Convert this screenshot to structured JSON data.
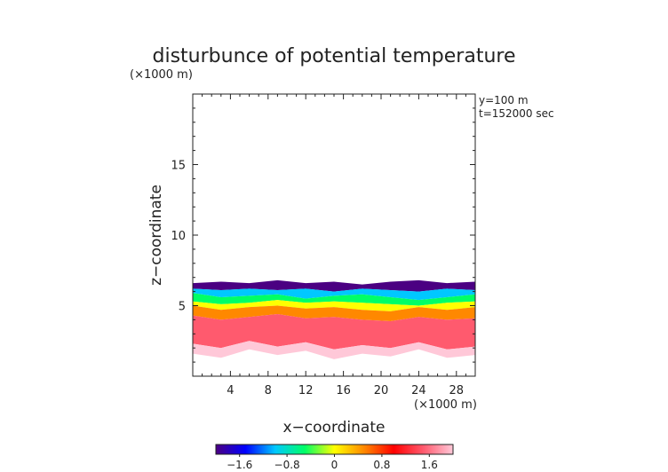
{
  "chart_data": {
    "type": "heatmap",
    "title": "disturbunce of potential temperature",
    "z_unit": "(×1000 m)",
    "x_unit": "(×1000 m)",
    "xlabel": "x−coordinate",
    "ylabel": "z−coordinate",
    "annotations": [
      "y=100  m",
      "t=152000 sec"
    ],
    "xlim": [
      0,
      30
    ],
    "ylim": [
      0,
      20
    ],
    "x_ticks": [
      4,
      8,
      12,
      16,
      20,
      24,
      28
    ],
    "x_tick_labels": [
      "4",
      "8",
      "12",
      "16",
      "20",
      "24",
      "28"
    ],
    "y_ticks": [
      5,
      10,
      15
    ],
    "y_tick_labels": [
      "5",
      "10",
      "15"
    ],
    "colorbar": {
      "range": [
        -2.0,
        2.0
      ],
      "ticks": [
        -1.6,
        -0.8,
        0,
        0.8,
        1.6
      ],
      "tick_labels": [
        "−1.6",
        "−0.8",
        "0",
        "0.8",
        "1.6"
      ],
      "colors": [
        "#4b0082",
        "#0000ff",
        "#00c8ff",
        "#00ff66",
        "#ffff00",
        "#ff8800",
        "#ff0000",
        "#ff5a6e",
        "#ffc8d8"
      ]
    },
    "field_layers": [
      {
        "name": "top edge",
        "value": -1.8,
        "z_profile": [
          [
            0,
            6.6
          ],
          [
            3,
            6.7
          ],
          [
            6,
            6.6
          ],
          [
            9,
            6.8
          ],
          [
            12,
            6.6
          ],
          [
            15,
            6.7
          ],
          [
            18,
            6.5
          ],
          [
            21,
            6.7
          ],
          [
            24,
            6.8
          ],
          [
            27,
            6.6
          ],
          [
            30,
            6.7
          ]
        ]
      },
      {
        "name": "blue band",
        "value": -1.2,
        "z_profile": [
          [
            0,
            6.2
          ],
          [
            3,
            6.1
          ],
          [
            6,
            6.2
          ],
          [
            9,
            6.1
          ],
          [
            12,
            6.2
          ],
          [
            15,
            6.0
          ],
          [
            18,
            6.2
          ],
          [
            21,
            6.1
          ],
          [
            24,
            6.0
          ],
          [
            27,
            6.2
          ],
          [
            30,
            6.1
          ]
        ]
      },
      {
        "name": "cyan band",
        "value": -0.6,
        "z_profile": [
          [
            0,
            5.9
          ],
          [
            3,
            5.6
          ],
          [
            6,
            5.7
          ],
          [
            9,
            5.8
          ],
          [
            12,
            5.5
          ],
          [
            15,
            5.7
          ],
          [
            18,
            5.8
          ],
          [
            21,
            5.6
          ],
          [
            24,
            5.4
          ],
          [
            27,
            5.6
          ],
          [
            30,
            5.8
          ]
        ]
      },
      {
        "name": "green band",
        "value": 0.0,
        "z_profile": [
          [
            0,
            5.3
          ],
          [
            3,
            5.1
          ],
          [
            6,
            5.2
          ],
          [
            9,
            5.4
          ],
          [
            12,
            5.2
          ],
          [
            15,
            5.3
          ],
          [
            18,
            5.2
          ],
          [
            21,
            5.1
          ],
          [
            24,
            5.0
          ],
          [
            27,
            5.2
          ],
          [
            30,
            5.3
          ]
        ]
      },
      {
        "name": "yellow-orange band",
        "value": 0.7,
        "z_profile": [
          [
            0,
            5.0
          ],
          [
            3,
            4.7
          ],
          [
            6,
            4.9
          ],
          [
            9,
            5.0
          ],
          [
            12,
            4.8
          ],
          [
            15,
            4.9
          ],
          [
            18,
            4.7
          ],
          [
            21,
            4.6
          ],
          [
            24,
            4.9
          ],
          [
            27,
            4.7
          ],
          [
            30,
            4.9
          ]
        ]
      },
      {
        "name": "red band",
        "value": 1.5,
        "z_profile": [
          [
            0,
            4.3
          ],
          [
            3,
            4.0
          ],
          [
            6,
            4.2
          ],
          [
            9,
            4.4
          ],
          [
            12,
            4.1
          ],
          [
            15,
            4.2
          ],
          [
            18,
            4.0
          ],
          [
            21,
            3.9
          ],
          [
            24,
            4.2
          ],
          [
            27,
            4.0
          ],
          [
            30,
            4.1
          ]
        ]
      },
      {
        "name": "pink base",
        "value": 2.0,
        "z_profile": [
          [
            0,
            2.3
          ],
          [
            3,
            2.0
          ],
          [
            6,
            2.5
          ],
          [
            9,
            2.1
          ],
          [
            12,
            2.4
          ],
          [
            15,
            1.9
          ],
          [
            18,
            2.2
          ],
          [
            21,
            2.0
          ],
          [
            24,
            2.4
          ],
          [
            27,
            1.9
          ],
          [
            30,
            2.1
          ]
        ]
      },
      {
        "name": "lower edge",
        "value": 2.0,
        "z_profile": [
          [
            0,
            1.6
          ],
          [
            3,
            1.3
          ],
          [
            6,
            1.9
          ],
          [
            9,
            1.5
          ],
          [
            12,
            1.8
          ],
          [
            15,
            1.2
          ],
          [
            18,
            1.6
          ],
          [
            21,
            1.4
          ],
          [
            24,
            1.9
          ],
          [
            27,
            1.3
          ],
          [
            30,
            1.5
          ]
        ]
      }
    ]
  }
}
